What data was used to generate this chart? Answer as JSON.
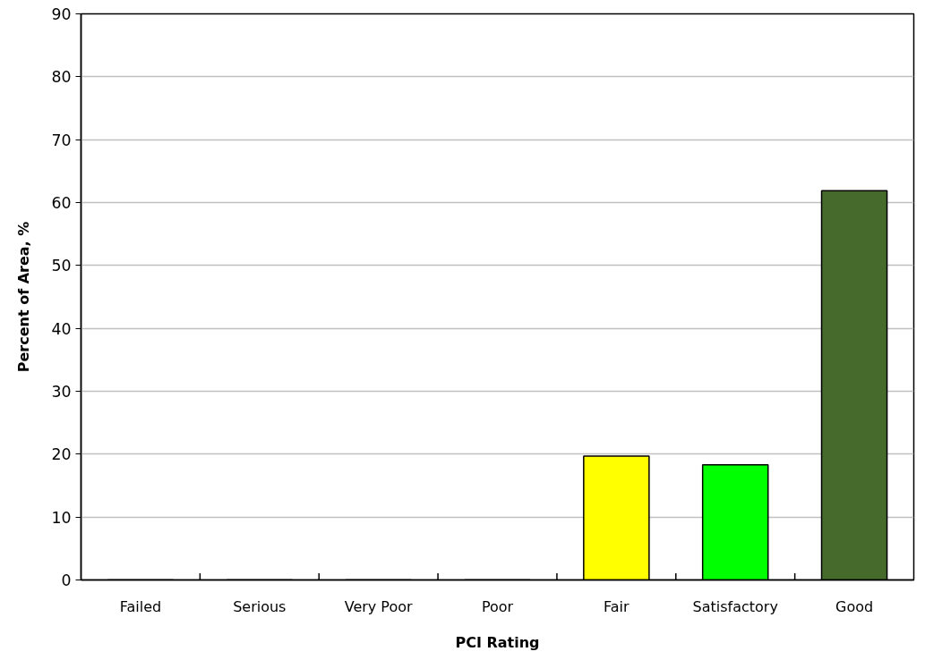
{
  "chart_data": {
    "type": "bar",
    "xlabel": "PCI Rating",
    "ylabel": "Percent of Area, %",
    "categories": [
      "Failed",
      "Serious",
      "Very Poor",
      "Poor",
      "Fair",
      "Satisfactory",
      "Good"
    ],
    "values": [
      0,
      0,
      0,
      0,
      19.7,
      18.3,
      61.9
    ],
    "colors": [
      "#808080",
      "#808080",
      "#808080",
      "#808080",
      "#ffff00",
      "#00ff00",
      "#456a2b"
    ],
    "ylim": [
      0,
      90
    ],
    "yticks": [
      0,
      10,
      20,
      30,
      40,
      50,
      60,
      70,
      80,
      90
    ],
    "grid": "y"
  }
}
